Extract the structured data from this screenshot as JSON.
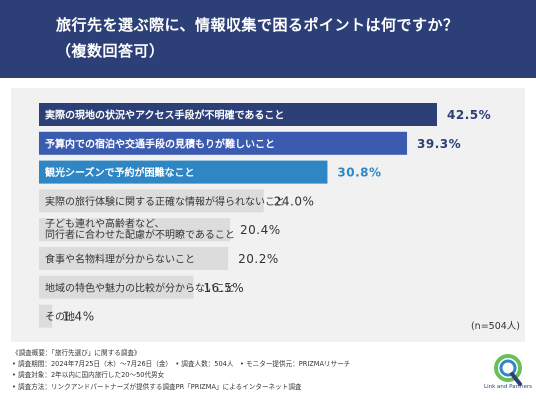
{
  "title": {
    "line1": "旅行先を選ぶ際に、情報収集で困るポイントは何ですか？",
    "line2": "（複数回答可）"
  },
  "sample_size": "(n=504人)",
  "colors": {
    "header": "#2c4077",
    "bar_primary": "#2c4077",
    "bar_secondary": "#3b5bb0",
    "bar_tertiary": "#2f86c4",
    "bar_other": "#dcdcdc",
    "panel": "#f1f1f1"
  },
  "chart_data": {
    "type": "bar",
    "orientation": "horizontal",
    "unit": "%",
    "xlim": [
      0,
      42.5
    ],
    "bars": [
      {
        "label": "実際の現地の状況やアクセス手段が不明確であること",
        "value": 42.5,
        "value_label": "42.5%"
      },
      {
        "label": "予算内での宿泊や交通手段の見積もりが難しいこと",
        "value": 39.3,
        "value_label": "39.3%"
      },
      {
        "label": "観光シーズンで予約が困難なこと",
        "value": 30.8,
        "value_label": "30.8%"
      },
      {
        "label": "実際の旅行体験に関する正確な情報が得られないこと",
        "value": 24.0,
        "value_label": "24.0%"
      },
      {
        "label": "子ども連れや高齢者など、\n同行者に合わせた配慮が不明瞭であること",
        "value": 20.4,
        "value_label": "20.4%"
      },
      {
        "label": "食事や名物料理が分からないこと",
        "value": 20.2,
        "value_label": "20.2%"
      },
      {
        "label": "地域の特色や魅力の比較が分からないこと",
        "value": 16.5,
        "value_label": "16.5%"
      },
      {
        "label": "その他",
        "value": 1.4,
        "value_label": "1.4%"
      }
    ]
  },
  "notes": [
    "《調査概要：「旅行先選び」に関する調査》",
    "• 調査期間：2024年7月25日（木）〜7月26日（金）　• 調査人数：504人　• モニター提供元：PRIZMAリサーチ",
    "• 調査対象：2年以内に国内旅行した20〜50代男女",
    "• 調査方法：リンクアンドパートナーズが提供する調査PR「PRIZMA」によるインターネット調査"
  ],
  "logo": {
    "icon": "linkandpartners-logo-icon",
    "text": "Link and Partners"
  }
}
